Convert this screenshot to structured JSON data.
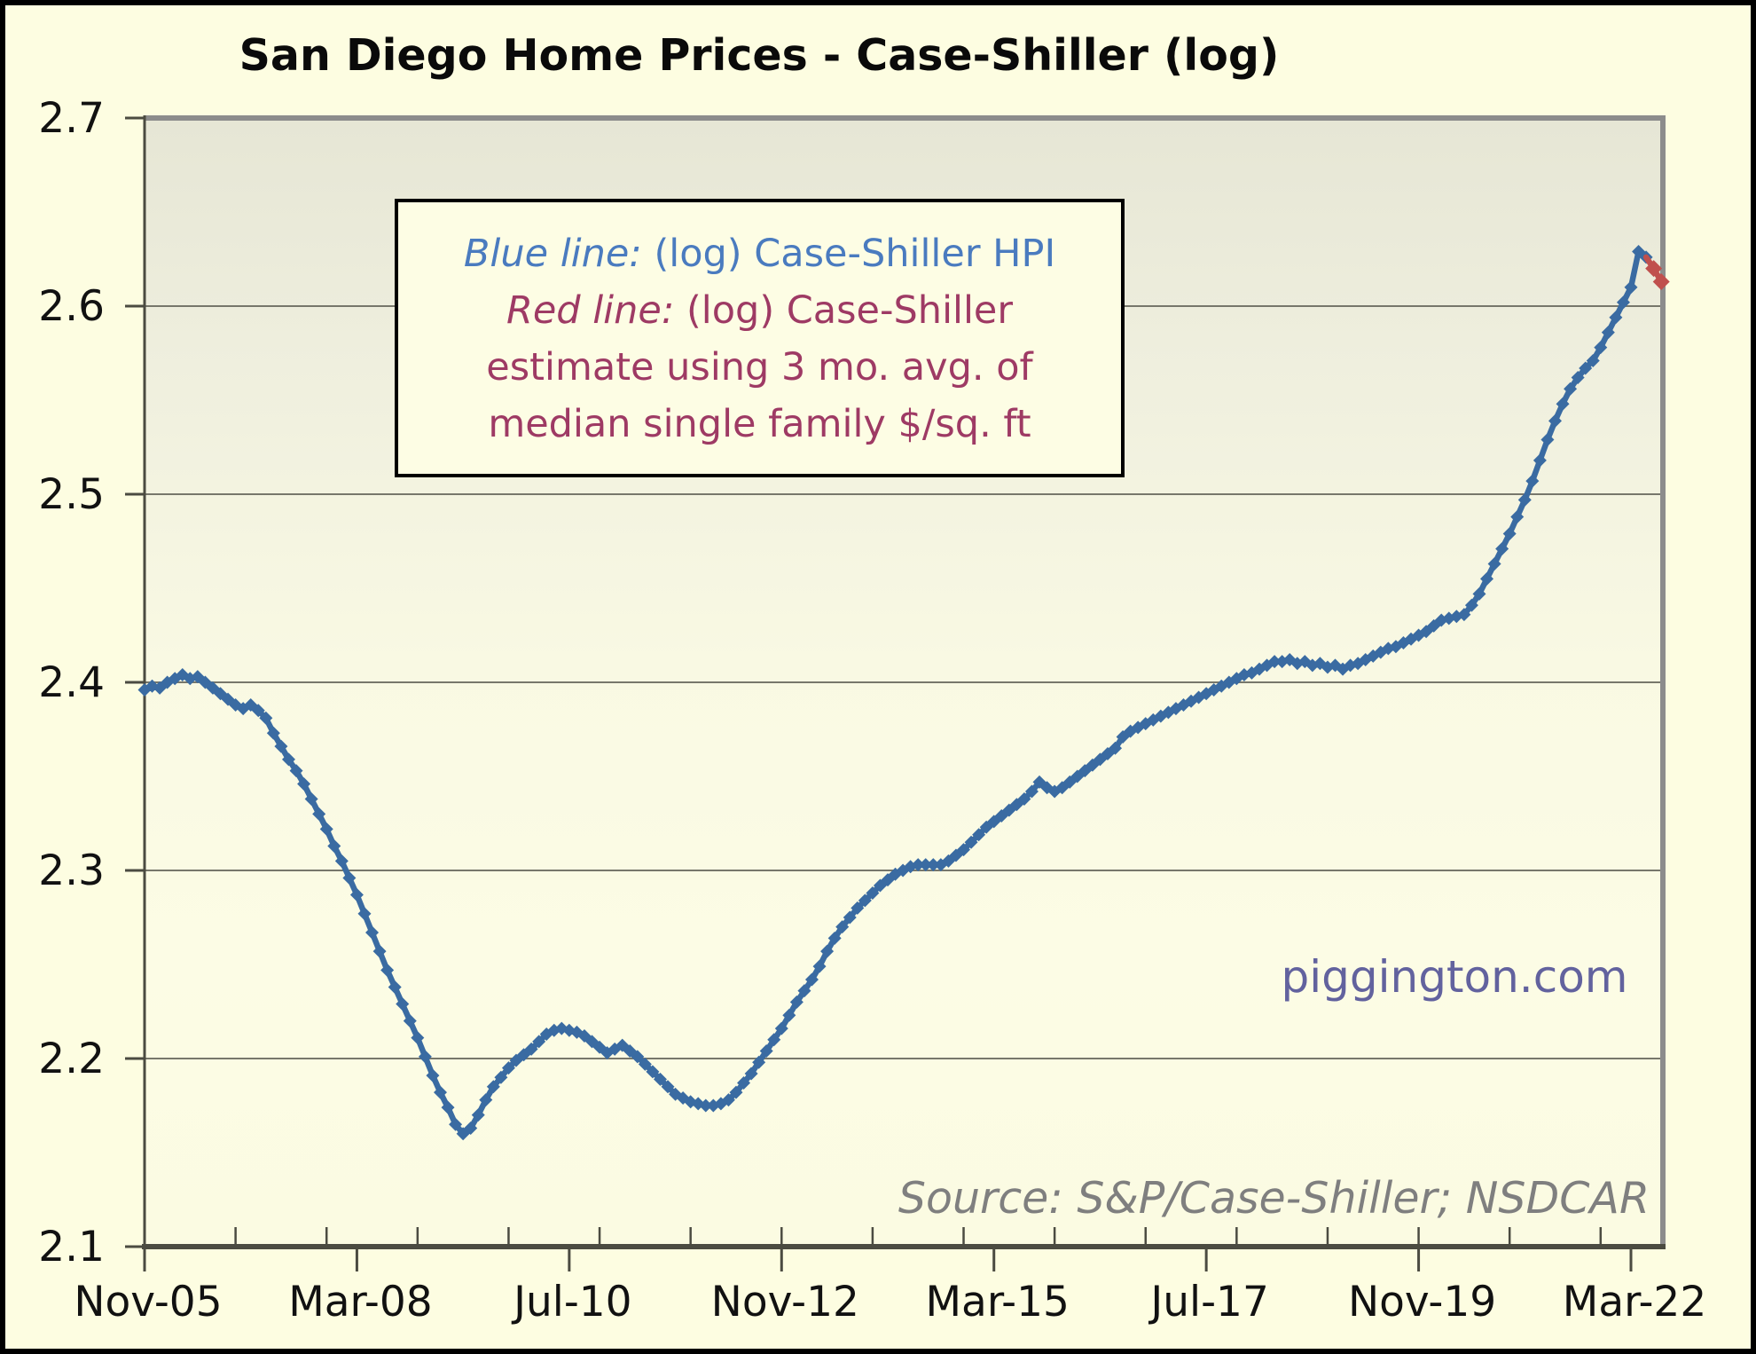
{
  "chart_data": {
    "type": "line",
    "title": "San Diego Home Prices - Case-Shiller (log)",
    "watermark": "piggington.com",
    "source_note": "Source: S&P/Case-Shiller; NSDCAR",
    "legend": {
      "lines": [
        {
          "prefix": "Blue line:",
          "rest": " (log) Case-Shiller HPI",
          "color": "#4A7BBF"
        },
        {
          "prefix": "Red line:",
          "rest": " (log) Case-Shiller",
          "color": "#9E3A64"
        },
        {
          "prefix": "",
          "rest": "estimate using 3 mo. avg. of",
          "color": "#9E3A64"
        },
        {
          "prefix": "",
          "rest": "median single family $/sq. ft",
          "color": "#9E3A64"
        }
      ]
    },
    "colors": {
      "hpi_line": "#3A6BA2",
      "estimate_line": "#C0504D",
      "gridline": "#77776B",
      "axis": "#4B4B41",
      "frame_shadow": "#8C8C8C",
      "tick_label": "#111111"
    },
    "y_axis": {
      "min": 2.1,
      "max": 2.7,
      "step": 0.1,
      "grid": true,
      "tick_labels": [
        "2.1",
        "2.2",
        "2.3",
        "2.4",
        "2.5",
        "2.6",
        "2.7"
      ]
    },
    "x_axis": {
      "tick_labels": [
        "Nov-05",
        "Mar-08",
        "Jul-10",
        "Nov-12",
        "Mar-15",
        "Jul-17",
        "Nov-19",
        "Mar-22"
      ],
      "tick_month_indices": [
        0,
        28,
        56,
        84,
        112,
        140,
        168,
        196
      ],
      "minor_tick_month_indices": [
        12,
        24,
        36,
        48,
        60,
        72,
        84,
        96,
        108,
        120,
        132,
        144,
        156,
        168,
        180,
        192
      ],
      "month_span": 200
    },
    "series": [
      {
        "name": "(log) Case-Shiller HPI",
        "color": "#3A6BA2",
        "marker": "diamond",
        "start_month_index": 0,
        "start_label": "Nov-05",
        "values": [
          2.396,
          2.398,
          2.397,
          2.4,
          2.402,
          2.404,
          2.402,
          2.403,
          2.4,
          2.397,
          2.394,
          2.391,
          2.388,
          2.386,
          2.388,
          2.385,
          2.381,
          2.373,
          2.366,
          2.359,
          2.353,
          2.346,
          2.338,
          2.33,
          2.322,
          2.313,
          2.305,
          2.296,
          2.287,
          2.277,
          2.267,
          2.257,
          2.247,
          2.238,
          2.229,
          2.22,
          2.211,
          2.201,
          2.191,
          2.182,
          2.174,
          2.165,
          2.16,
          2.163,
          2.17,
          2.178,
          2.185,
          2.19,
          2.195,
          2.199,
          2.202,
          2.205,
          2.209,
          2.213,
          2.215,
          2.216,
          2.215,
          2.214,
          2.212,
          2.209,
          2.206,
          2.203,
          2.205,
          2.207,
          2.204,
          2.201,
          2.197,
          2.193,
          2.189,
          2.185,
          2.181,
          2.179,
          2.177,
          2.176,
          2.175,
          2.175,
          2.176,
          2.178,
          2.182,
          2.187,
          2.192,
          2.198,
          2.204,
          2.21,
          2.216,
          2.223,
          2.23,
          2.236,
          2.242,
          2.249,
          2.257,
          2.264,
          2.27,
          2.275,
          2.28,
          2.284,
          2.288,
          2.292,
          2.295,
          2.298,
          2.3,
          2.302,
          2.303,
          2.303,
          2.303,
          2.303,
          2.305,
          2.308,
          2.311,
          2.315,
          2.319,
          2.323,
          2.326,
          2.329,
          2.332,
          2.335,
          2.338,
          2.342,
          2.347,
          2.344,
          2.342,
          2.344,
          2.347,
          2.35,
          2.353,
          2.356,
          2.359,
          2.362,
          2.365,
          2.371,
          2.374,
          2.376,
          2.378,
          2.38,
          2.382,
          2.384,
          2.386,
          2.388,
          2.39,
          2.392,
          2.394,
          2.396,
          2.398,
          2.4,
          2.402,
          2.404,
          2.405,
          2.407,
          2.409,
          2.411,
          2.411,
          2.412,
          2.41,
          2.411,
          2.409,
          2.41,
          2.408,
          2.409,
          2.407,
          2.409,
          2.41,
          2.412,
          2.414,
          2.416,
          2.418,
          2.419,
          2.421,
          2.423,
          2.425,
          2.427,
          2.43,
          2.433,
          2.434,
          2.435,
          2.436,
          2.441,
          2.447,
          2.455,
          2.463,
          2.471,
          2.479,
          2.488,
          2.497,
          2.507,
          2.518,
          2.529,
          2.539,
          2.548,
          2.556,
          2.562,
          2.567,
          2.571,
          2.578,
          2.586,
          2.594,
          2.602,
          2.61,
          2.629,
          2.626
        ]
      },
      {
        "name": "(log) Case-Shiller estimate using 3 mo. avg. of median single family $/sq. ft",
        "color": "#C0504D",
        "marker": "diamond",
        "start_month_index": 198,
        "values": [
          2.626,
          2.62,
          2.613
        ],
        "note_visible_points": 2
      }
    ]
  }
}
